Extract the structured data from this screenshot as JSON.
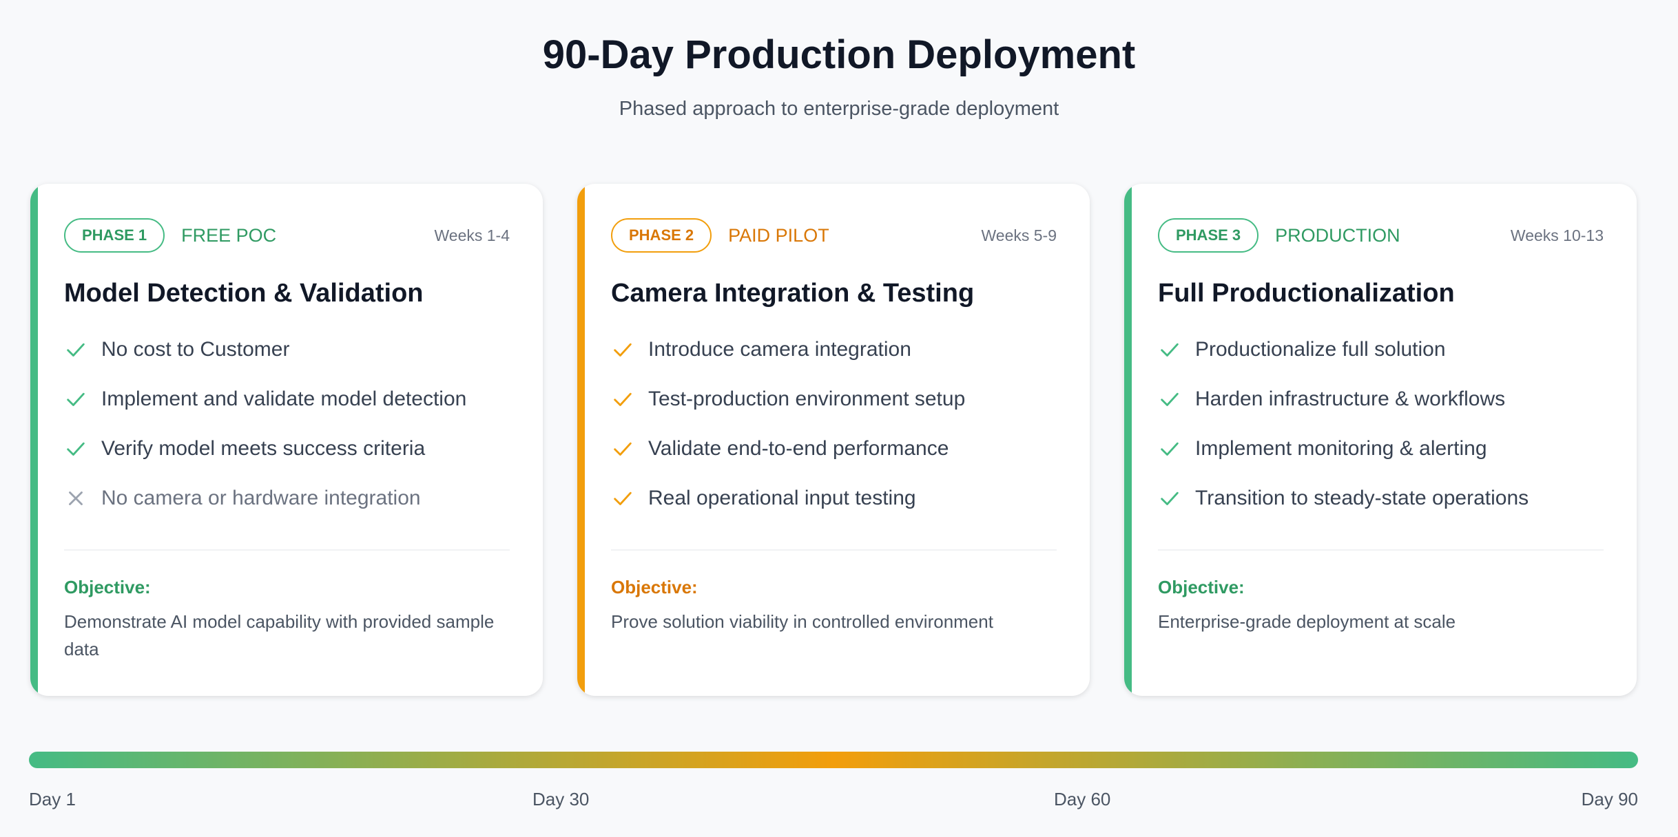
{
  "header": {
    "title": "90-Day Production Deployment",
    "subtitle": "Phased approach to enterprise-grade deployment"
  },
  "colors": {
    "green": "#45bb84",
    "green_text": "#2f9a62",
    "orange": "#f29e0c",
    "orange_text": "#d97706"
  },
  "phases": [
    {
      "badge": "PHASE 1",
      "label": "FREE POC",
      "weeks": "Weeks 1-4",
      "title": "Model Detection & Validation",
      "items": [
        {
          "text": "No cost to Customer",
          "icon": "check-icon"
        },
        {
          "text": "Implement and validate model detection",
          "icon": "check-icon"
        },
        {
          "text": "Verify model meets success criteria",
          "icon": "check-icon"
        },
        {
          "text": "No camera or hardware integration",
          "icon": "x-icon"
        }
      ],
      "objective_label": "Objective:",
      "objective": "Demonstrate AI model capability with provided sample data"
    },
    {
      "badge": "PHASE 2",
      "label": "PAID PILOT",
      "weeks": "Weeks 5-9",
      "title": "Camera Integration & Testing",
      "items": [
        {
          "text": "Introduce camera integration",
          "icon": "check-icon"
        },
        {
          "text": "Test-production environment setup",
          "icon": "check-icon"
        },
        {
          "text": "Validate end-to-end performance",
          "icon": "check-icon"
        },
        {
          "text": "Real operational input testing",
          "icon": "check-icon"
        }
      ],
      "objective_label": "Objective:",
      "objective": "Prove solution viability in controlled environment"
    },
    {
      "badge": "PHASE 3",
      "label": "PRODUCTION",
      "weeks": "Weeks 10-13",
      "title": "Full Productionalization",
      "items": [
        {
          "text": "Productionalize full solution",
          "icon": "check-icon"
        },
        {
          "text": "Harden infrastructure & workflows",
          "icon": "check-icon"
        },
        {
          "text": "Implement monitoring & alerting",
          "icon": "check-icon"
        },
        {
          "text": "Transition to steady-state operations",
          "icon": "check-icon"
        }
      ],
      "objective_label": "Objective:",
      "objective": "Enterprise-grade deployment at scale"
    }
  ],
  "timeline": {
    "labels": [
      "Day 1",
      "Day 30",
      "Day 60",
      "Day 90"
    ]
  }
}
